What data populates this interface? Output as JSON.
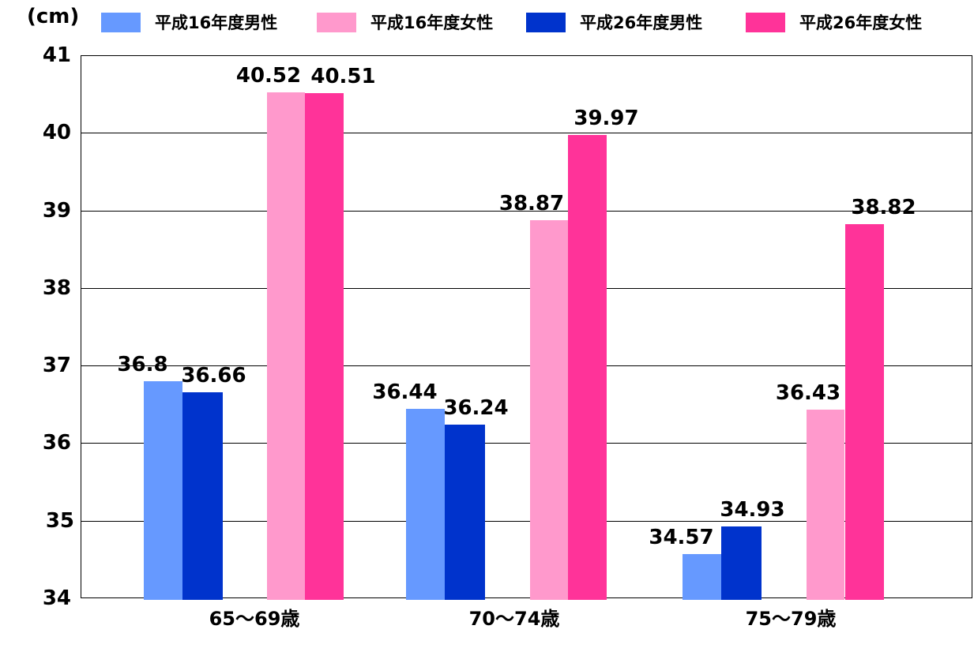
{
  "chart_data": {
    "type": "bar",
    "title": "",
    "unit_label": "(cm)",
    "xlabel": "",
    "ylabel": "(cm)",
    "ylim": [
      34,
      41
    ],
    "yticks": [
      "41",
      "40",
      "39",
      "38",
      "37",
      "36",
      "35",
      "34"
    ],
    "grid": true,
    "legend_position": "top",
    "categories": [
      "65～69歳",
      "70～74歳",
      "75～79歳"
    ],
    "series": [
      {
        "name": "平成16年度男性",
        "color": "#6699FF",
        "values": [
          36.8,
          36.44,
          34.57
        ]
      },
      {
        "name": "平成26年度男性",
        "color": "#0033CC",
        "values": [
          36.66,
          36.24,
          34.93
        ]
      },
      {
        "name": "平成16年度女性",
        "color": "#FF99CC",
        "values": [
          40.52,
          38.87,
          36.43
        ]
      },
      {
        "name": "平成26年度女性",
        "color": "#FF3399",
        "values": [
          40.51,
          39.97,
          38.82
        ]
      }
    ],
    "value_labels": [
      [
        "36.8",
        "36.44",
        "34.57"
      ],
      [
        "36.66",
        "36.24",
        "34.93"
      ],
      [
        "40.52",
        "38.87",
        "36.43"
      ],
      [
        "40.51",
        "39.97",
        "38.82"
      ]
    ]
  },
  "legend": [
    {
      "label": "平成16年度男性",
      "color": "#6699FF"
    },
    {
      "label": "平成16年度女性",
      "color": "#FF99CC"
    },
    {
      "label": "平成26年度男性",
      "color": "#0033CC"
    },
    {
      "label": "平成26年度女性",
      "color": "#FF3399"
    }
  ]
}
